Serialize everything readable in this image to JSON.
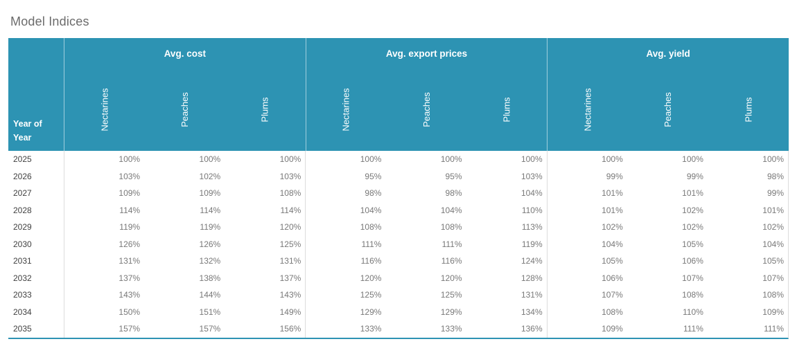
{
  "title": "Model Indices",
  "colors": {
    "header_bg": "#2d93b3",
    "header_text": "#ffffff",
    "title_text": "#6b6b6b",
    "year_text": "#414141",
    "value_text": "#787878",
    "body_separator": "#dcdcdc",
    "bottom_border": "#2d93b3"
  },
  "table": {
    "row_header": "Year of Year",
    "row_header_lines": [
      "Year of",
      "Year"
    ],
    "groups": [
      {
        "label": "Avg. cost",
        "columns": [
          "Nectarines",
          "Peaches",
          "Plums"
        ]
      },
      {
        "label": "Avg. export prices",
        "columns": [
          "Nectarines",
          "Peaches",
          "Plums"
        ]
      },
      {
        "label": "Avg. yield",
        "columns": [
          "Nectarines",
          "Peaches",
          "Plums"
        ]
      }
    ],
    "rows": [
      {
        "year": "2025",
        "values": [
          "100%",
          "100%",
          "100%",
          "100%",
          "100%",
          "100%",
          "100%",
          "100%",
          "100%"
        ]
      },
      {
        "year": "2026",
        "values": [
          "103%",
          "102%",
          "103%",
          "95%",
          "95%",
          "103%",
          "99%",
          "99%",
          "98%"
        ]
      },
      {
        "year": "2027",
        "values": [
          "109%",
          "109%",
          "108%",
          "98%",
          "98%",
          "104%",
          "101%",
          "101%",
          "99%"
        ]
      },
      {
        "year": "2028",
        "values": [
          "114%",
          "114%",
          "114%",
          "104%",
          "104%",
          "110%",
          "101%",
          "102%",
          "101%"
        ]
      },
      {
        "year": "2029",
        "values": [
          "119%",
          "119%",
          "120%",
          "108%",
          "108%",
          "113%",
          "102%",
          "102%",
          "102%"
        ]
      },
      {
        "year": "2030",
        "values": [
          "126%",
          "126%",
          "125%",
          "111%",
          "111%",
          "119%",
          "104%",
          "105%",
          "104%"
        ]
      },
      {
        "year": "2031",
        "values": [
          "131%",
          "132%",
          "131%",
          "116%",
          "116%",
          "124%",
          "105%",
          "106%",
          "105%"
        ]
      },
      {
        "year": "2032",
        "values": [
          "137%",
          "138%",
          "137%",
          "120%",
          "120%",
          "128%",
          "106%",
          "107%",
          "107%"
        ]
      },
      {
        "year": "2033",
        "values": [
          "143%",
          "144%",
          "143%",
          "125%",
          "125%",
          "131%",
          "107%",
          "108%",
          "108%"
        ]
      },
      {
        "year": "2034",
        "values": [
          "150%",
          "151%",
          "149%",
          "129%",
          "129%",
          "134%",
          "108%",
          "110%",
          "109%"
        ]
      },
      {
        "year": "2035",
        "values": [
          "157%",
          "157%",
          "156%",
          "133%",
          "133%",
          "136%",
          "109%",
          "111%",
          "111%"
        ]
      }
    ]
  },
  "chart_data": {
    "type": "table",
    "title": "Model Indices",
    "row_axis_label": "Year of Year",
    "years": [
      2025,
      2026,
      2027,
      2028,
      2029,
      2030,
      2031,
      2032,
      2033,
      2034,
      2035
    ],
    "unit": "percent",
    "column_groups": [
      "Avg. cost",
      "Avg. export prices",
      "Avg. yield"
    ],
    "sub_columns": [
      "Nectarines",
      "Peaches",
      "Plums"
    ],
    "series": [
      {
        "group": "Avg. cost",
        "name": "Nectarines",
        "values": [
          100,
          103,
          109,
          114,
          119,
          126,
          131,
          137,
          143,
          150,
          157
        ]
      },
      {
        "group": "Avg. cost",
        "name": "Peaches",
        "values": [
          100,
          102,
          109,
          114,
          119,
          126,
          132,
          138,
          144,
          151,
          157
        ]
      },
      {
        "group": "Avg. cost",
        "name": "Plums",
        "values": [
          100,
          103,
          108,
          114,
          120,
          125,
          131,
          137,
          143,
          149,
          156
        ]
      },
      {
        "group": "Avg. export prices",
        "name": "Nectarines",
        "values": [
          100,
          95,
          98,
          104,
          108,
          111,
          116,
          120,
          125,
          129,
          133
        ]
      },
      {
        "group": "Avg. export prices",
        "name": "Peaches",
        "values": [
          100,
          95,
          98,
          104,
          108,
          111,
          116,
          120,
          125,
          129,
          133
        ]
      },
      {
        "group": "Avg. export prices",
        "name": "Plums",
        "values": [
          100,
          103,
          104,
          110,
          113,
          119,
          124,
          128,
          131,
          134,
          136
        ]
      },
      {
        "group": "Avg. yield",
        "name": "Nectarines",
        "values": [
          100,
          99,
          101,
          101,
          102,
          104,
          105,
          106,
          107,
          108,
          109
        ]
      },
      {
        "group": "Avg. yield",
        "name": "Peaches",
        "values": [
          100,
          99,
          101,
          102,
          102,
          105,
          106,
          107,
          108,
          110,
          111
        ]
      },
      {
        "group": "Avg. yield",
        "name": "Plums",
        "values": [
          100,
          98,
          99,
          101,
          102,
          104,
          105,
          107,
          108,
          109,
          111
        ]
      }
    ]
  }
}
